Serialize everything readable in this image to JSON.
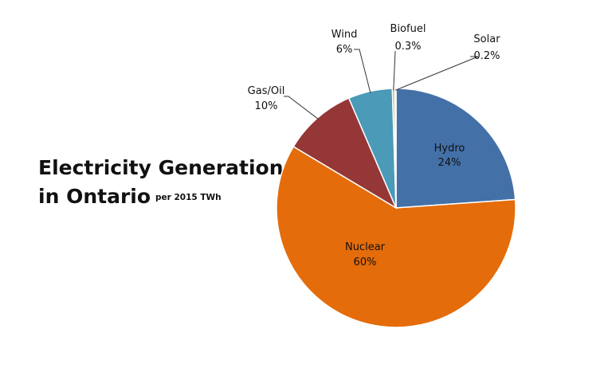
{
  "chart_data": {
    "type": "pie",
    "title_line1": "Electricity Generation",
    "title_line2": "in Ontario",
    "subtitle": "per 2015 TWh",
    "slices": [
      {
        "name": "Hydro",
        "pct_label": "24%",
        "value": 24,
        "color": "#4470a8"
      },
      {
        "name": "Nuclear",
        "pct_label": "60%",
        "value": 60,
        "color": "#e46c0a"
      },
      {
        "name": "Gas/Oil",
        "pct_label": "10%",
        "value": 10,
        "color": "#953736"
      },
      {
        "name": "Wind",
        "pct_label": "6%",
        "value": 6,
        "color": "#4a9ab8"
      },
      {
        "name": "Biofuel",
        "pct_label": "0.3%",
        "value": 0.3,
        "color": "#c0a060"
      },
      {
        "name": "Solar",
        "pct_label": "0.2%",
        "value": 0.2,
        "color": "#e0b090"
      }
    ]
  }
}
